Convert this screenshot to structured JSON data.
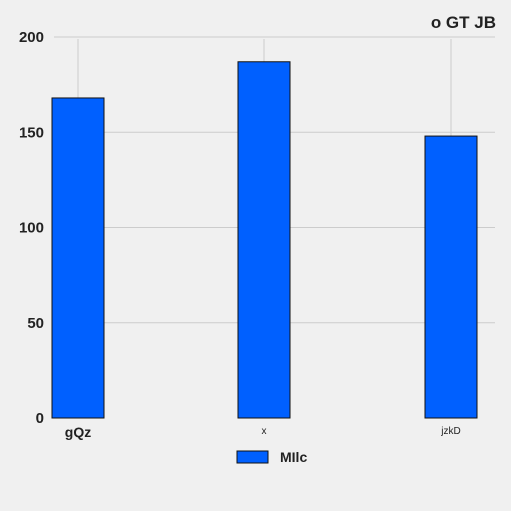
{
  "chart_data": {
    "type": "bar",
    "title": "o GT  JB",
    "xlabel": "",
    "ylabel": "",
    "categories": [
      "gQz",
      "x",
      "jzkD"
    ],
    "category_label_sizes": [
      "large",
      "small",
      "small"
    ],
    "series": [
      {
        "name": "MIlc",
        "values": [
          168,
          187,
          148
        ],
        "color": "#0060ff"
      }
    ],
    "ylim": [
      0,
      200
    ],
    "yticks": [
      0,
      50,
      100,
      150,
      200
    ],
    "grid": true,
    "legend_position": "bottom-center",
    "colors": {
      "background": "#f0f0f0",
      "grid": "#cccccc",
      "bar_edge": "#111111",
      "text": "#222222"
    }
  }
}
